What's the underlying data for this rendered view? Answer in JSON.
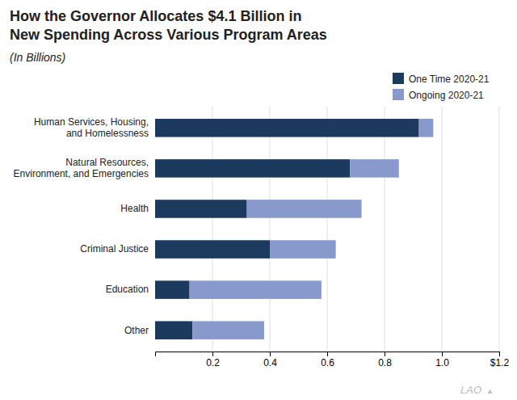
{
  "chart_data": {
    "type": "bar",
    "orientation": "horizontal",
    "stacked": true,
    "title": "How the Governor Allocates $4.1 Billion in\nNew Spending Across Various Program Areas",
    "subtitle": "(In Billions)",
    "categories": [
      "Human Services, Housing,\nand Homelessness",
      "Natural Resources,\nEnvironment, and Emergencies",
      "Health",
      "Criminal Justice",
      "Education",
      "Other"
    ],
    "series": [
      {
        "name": "One Time 2020-21",
        "color": "#1c3a5e",
        "values": [
          0.92,
          0.68,
          0.32,
          0.4,
          0.12,
          0.13
        ]
      },
      {
        "name": "Ongoing 2020-21",
        "color": "#8899cc",
        "values": [
          0.05,
          0.17,
          0.4,
          0.23,
          0.46,
          0.25
        ]
      }
    ],
    "xlim": [
      0,
      1.2
    ],
    "xticks": [
      0.2,
      0.4,
      0.6,
      0.8,
      {
        "value": 1.0,
        "label": "1.0"
      },
      {
        "value": 1.2,
        "label": "$1.2"
      }
    ],
    "grid": true,
    "legend": "upper right",
    "annotations": [
      "LAO",
      "▲"
    ]
  }
}
